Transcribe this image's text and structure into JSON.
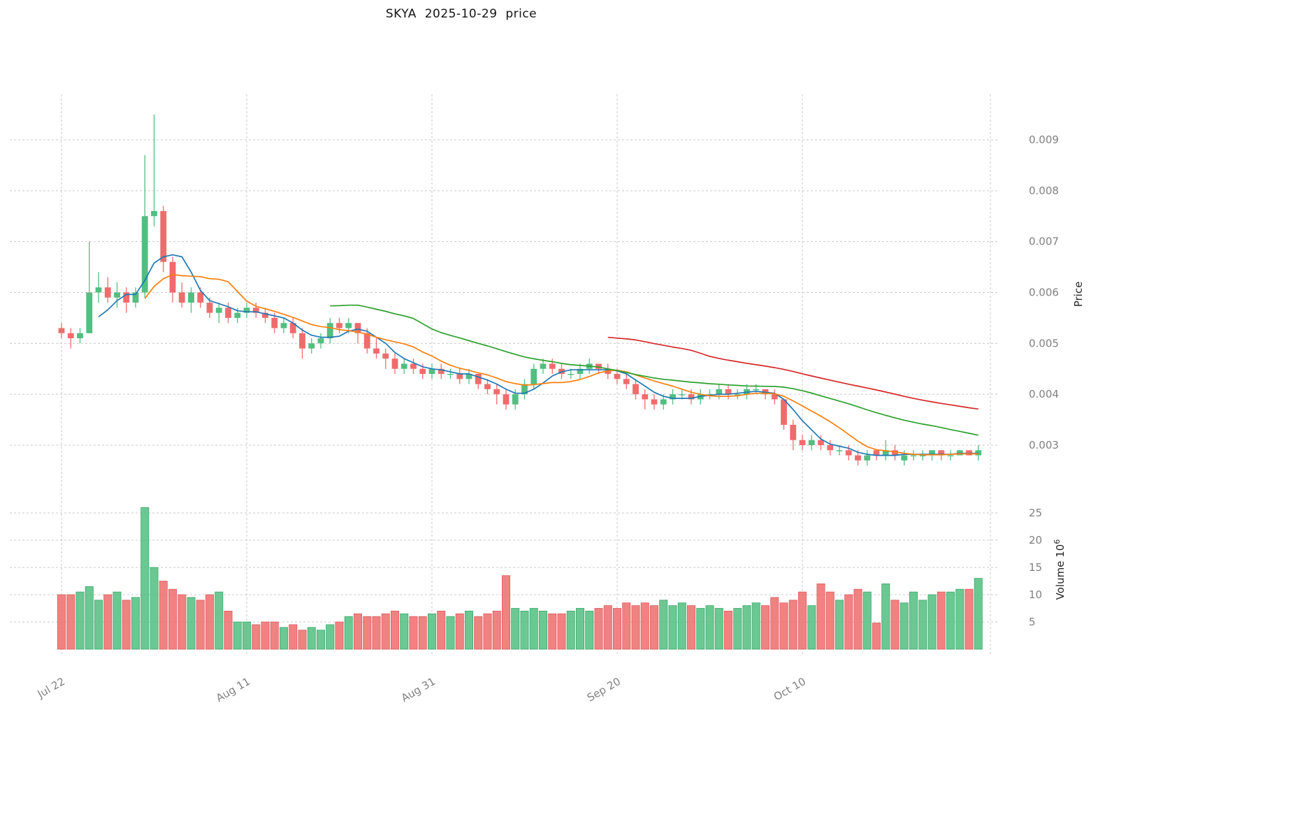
{
  "title": "SKYA  2025-10-29  price",
  "axes": {
    "price_axis_label": "Price",
    "volume_axis_label": "Volume",
    "volume_axis_base": "10",
    "volume_axis_exponent": "6",
    "price_ticks": [
      {
        "label": "0.003",
        "value": 0.003
      },
      {
        "label": "0.004",
        "value": 0.004
      },
      {
        "label": "0.005",
        "value": 0.005
      },
      {
        "label": "0.006",
        "value": 0.006
      },
      {
        "label": "0.007",
        "value": 0.007
      },
      {
        "label": "0.008",
        "value": 0.008
      },
      {
        "label": "0.009",
        "value": 0.009
      }
    ],
    "volume_ticks": [
      {
        "label": "5",
        "value": 5
      },
      {
        "label": "10",
        "value": 10
      },
      {
        "label": "15",
        "value": 15
      },
      {
        "label": "20",
        "value": 20
      },
      {
        "label": "25",
        "value": 25
      }
    ],
    "x_ticks": [
      {
        "label": "Jul 22",
        "index": 0
      },
      {
        "label": "Aug 11",
        "index": 20
      },
      {
        "label": "Aug 31",
        "index": 40
      },
      {
        "label": "Sep 20",
        "index": 60
      },
      {
        "label": "Oct 10",
        "index": 80
      }
    ]
  },
  "chart_data": {
    "type": "candlestick+volume",
    "title": "SKYA  2025-10-29  price",
    "volume_unit": "10^6",
    "grid": "dashed",
    "legend_position": "none",
    "colors": {
      "up": "#52be80",
      "down": "#ef6c6c",
      "up_edge": "#3aa869",
      "down_edge": "#dd5a5a",
      "grid": "#c9c9c9",
      "tick_text": "#808080",
      "title_text": "#141414"
    },
    "moving_averages": [
      {
        "window": 5,
        "color": "#1f77b4"
      },
      {
        "window": 10,
        "color": "#ff7f0e"
      },
      {
        "window": 30,
        "color": "#2ca02c"
      },
      {
        "window": 60,
        "color": "#d62728"
      }
    ],
    "price_axis_range": [
      0.0025,
      0.0097
    ],
    "volume_axis_range": [
      0,
      27
    ],
    "candle_columns": [
      "open",
      "high",
      "low",
      "close",
      "volume_millions"
    ],
    "candles": [
      [
        0.0053,
        0.0054,
        0.0051,
        0.0052,
        10
      ],
      [
        0.0052,
        0.0053,
        0.0049,
        0.0051,
        10
      ],
      [
        0.0051,
        0.0053,
        0.005,
        0.0052,
        10.5
      ],
      [
        0.0052,
        0.007,
        0.0052,
        0.006,
        11.5
      ],
      [
        0.006,
        0.0064,
        0.0058,
        0.0061,
        9
      ],
      [
        0.0061,
        0.0063,
        0.0058,
        0.0059,
        10
      ],
      [
        0.0059,
        0.0062,
        0.0057,
        0.006,
        10.5
      ],
      [
        0.006,
        0.0061,
        0.0056,
        0.0058,
        9
      ],
      [
        0.0058,
        0.0061,
        0.0057,
        0.006,
        9.5
      ],
      [
        0.006,
        0.0087,
        0.0059,
        0.0075,
        26
      ],
      [
        0.0075,
        0.0095,
        0.0073,
        0.0076,
        15
      ],
      [
        0.0076,
        0.0077,
        0.0064,
        0.0066,
        12.5
      ],
      [
        0.0066,
        0.0067,
        0.0058,
        0.006,
        11
      ],
      [
        0.006,
        0.0062,
        0.0057,
        0.0058,
        10
      ],
      [
        0.0058,
        0.0061,
        0.0056,
        0.006,
        9.5
      ],
      [
        0.006,
        0.0061,
        0.0057,
        0.0058,
        9
      ],
      [
        0.0058,
        0.0059,
        0.0055,
        0.0056,
        10
      ],
      [
        0.0056,
        0.0058,
        0.0054,
        0.0057,
        10.5
      ],
      [
        0.0057,
        0.0058,
        0.0054,
        0.0055,
        7
      ],
      [
        0.0055,
        0.0057,
        0.0054,
        0.0056,
        5
      ],
      [
        0.0056,
        0.0058,
        0.0055,
        0.0057,
        5
      ],
      [
        0.0057,
        0.0058,
        0.0055,
        0.0056,
        4.5
      ],
      [
        0.0056,
        0.0057,
        0.0054,
        0.0055,
        5
      ],
      [
        0.0055,
        0.0056,
        0.0052,
        0.0053,
        5
      ],
      [
        0.0053,
        0.0055,
        0.0052,
        0.0054,
        4
      ],
      [
        0.0054,
        0.0055,
        0.0051,
        0.0052,
        4.5
      ],
      [
        0.0052,
        0.0053,
        0.0047,
        0.0049,
        3.5
      ],
      [
        0.0049,
        0.0051,
        0.0048,
        0.005,
        4
      ],
      [
        0.005,
        0.0052,
        0.0049,
        0.0051,
        3.5
      ],
      [
        0.0051,
        0.0055,
        0.005,
        0.0054,
        4.5
      ],
      [
        0.0054,
        0.0055,
        0.0052,
        0.0053,
        5
      ],
      [
        0.0053,
        0.0055,
        0.0052,
        0.0054,
        6
      ],
      [
        0.0054,
        0.0054,
        0.005,
        0.0052,
        6.5
      ],
      [
        0.0052,
        0.0053,
        0.0048,
        0.0049,
        6
      ],
      [
        0.0049,
        0.0051,
        0.0047,
        0.0048,
        6
      ],
      [
        0.0048,
        0.0049,
        0.0045,
        0.0047,
        6.5
      ],
      [
        0.0047,
        0.0048,
        0.0044,
        0.0045,
        7
      ],
      [
        0.0045,
        0.0047,
        0.0044,
        0.0046,
        6.5
      ],
      [
        0.0046,
        0.0047,
        0.0044,
        0.0045,
        6
      ],
      [
        0.0045,
        0.0046,
        0.0043,
        0.0044,
        6
      ],
      [
        0.0044,
        0.0046,
        0.0043,
        0.0045,
        6.5
      ],
      [
        0.0045,
        0.0046,
        0.0043,
        0.0044,
        7
      ],
      [
        0.0044,
        0.0045,
        0.0043,
        0.0044,
        6
      ],
      [
        0.0044,
        0.0045,
        0.0042,
        0.0043,
        6.5
      ],
      [
        0.0043,
        0.0045,
        0.0042,
        0.0044,
        7
      ],
      [
        0.0044,
        0.0044,
        0.0041,
        0.0042,
        6
      ],
      [
        0.0042,
        0.0043,
        0.004,
        0.0041,
        6.5
      ],
      [
        0.0041,
        0.0042,
        0.0038,
        0.004,
        7
      ],
      [
        0.004,
        0.0041,
        0.0037,
        0.0038,
        13.5
      ],
      [
        0.0038,
        0.0041,
        0.0037,
        0.004,
        7.5
      ],
      [
        0.004,
        0.0043,
        0.0039,
        0.0042,
        7
      ],
      [
        0.0042,
        0.0046,
        0.0041,
        0.0045,
        7.5
      ],
      [
        0.0045,
        0.0047,
        0.0044,
        0.0046,
        7
      ],
      [
        0.0046,
        0.0047,
        0.0044,
        0.0045,
        6.5
      ],
      [
        0.0045,
        0.0046,
        0.0043,
        0.0044,
        6.5
      ],
      [
        0.0044,
        0.0045,
        0.0043,
        0.0044,
        7
      ],
      [
        0.0044,
        0.0046,
        0.0043,
        0.0045,
        7.5
      ],
      [
        0.0045,
        0.0047,
        0.0044,
        0.0046,
        7
      ],
      [
        0.0046,
        0.0046,
        0.0044,
        0.0045,
        7.5
      ],
      [
        0.0045,
        0.0046,
        0.0043,
        0.0044,
        8
      ],
      [
        0.0044,
        0.0045,
        0.0042,
        0.0043,
        7.5
      ],
      [
        0.0043,
        0.0044,
        0.0041,
        0.0042,
        8.5
      ],
      [
        0.0042,
        0.0043,
        0.0039,
        0.004,
        8
      ],
      [
        0.004,
        0.0041,
        0.0037,
        0.0039,
        8.5
      ],
      [
        0.0039,
        0.004,
        0.0037,
        0.0038,
        8
      ],
      [
        0.0038,
        0.004,
        0.0037,
        0.0039,
        9
      ],
      [
        0.0039,
        0.0041,
        0.0038,
        0.004,
        8
      ],
      [
        0.004,
        0.0041,
        0.0039,
        0.004,
        8.5
      ],
      [
        0.004,
        0.0041,
        0.0038,
        0.0039,
        8
      ],
      [
        0.0039,
        0.0041,
        0.0038,
        0.004,
        7.5
      ],
      [
        0.004,
        0.0041,
        0.0039,
        0.004,
        8
      ],
      [
        0.004,
        0.0042,
        0.0039,
        0.0041,
        7.5
      ],
      [
        0.0041,
        0.0042,
        0.0039,
        0.004,
        7
      ],
      [
        0.004,
        0.0041,
        0.0039,
        0.004,
        7.5
      ],
      [
        0.004,
        0.0042,
        0.0039,
        0.0041,
        8
      ],
      [
        0.0041,
        0.0042,
        0.004,
        0.0041,
        8.5
      ],
      [
        0.0041,
        0.0041,
        0.0039,
        0.004,
        8
      ],
      [
        0.004,
        0.0041,
        0.0038,
        0.0039,
        9.5
      ],
      [
        0.0039,
        0.0039,
        0.0033,
        0.0034,
        8.5
      ],
      [
        0.0034,
        0.0035,
        0.0029,
        0.0031,
        9
      ],
      [
        0.0031,
        0.0032,
        0.0029,
        0.003,
        10.5
      ],
      [
        0.003,
        0.0032,
        0.0029,
        0.0031,
        8
      ],
      [
        0.0031,
        0.0032,
        0.0029,
        0.003,
        12
      ],
      [
        0.003,
        0.0031,
        0.0028,
        0.0029,
        10.5
      ],
      [
        0.0029,
        0.003,
        0.0028,
        0.0029,
        9
      ],
      [
        0.0029,
        0.003,
        0.0027,
        0.0028,
        10
      ],
      [
        0.0028,
        0.0029,
        0.0026,
        0.0027,
        11
      ],
      [
        0.0027,
        0.0029,
        0.0026,
        0.0028,
        10.5
      ],
      [
        0.0029,
        0.0029,
        0.0027,
        0.0028,
        4.8
      ],
      [
        0.0028,
        0.0031,
        0.0027,
        0.0029,
        12
      ],
      [
        0.0029,
        0.003,
        0.0027,
        0.0028,
        9
      ],
      [
        0.0027,
        0.0029,
        0.0026,
        0.0028,
        8.5
      ],
      [
        0.0028,
        0.0029,
        0.0027,
        0.0028,
        10.5
      ],
      [
        0.0028,
        0.0029,
        0.0027,
        0.0028,
        9
      ],
      [
        0.0028,
        0.0029,
        0.0027,
        0.0029,
        10
      ],
      [
        0.0029,
        0.0029,
        0.0027,
        0.0028,
        10.5
      ],
      [
        0.0028,
        0.0029,
        0.0027,
        0.0028,
        10.5
      ],
      [
        0.0028,
        0.0029,
        0.0028,
        0.0029,
        11
      ],
      [
        0.0029,
        0.0029,
        0.0028,
        0.0028,
        11
      ],
      [
        0.0028,
        0.003,
        0.0027,
        0.0029,
        13
      ]
    ]
  }
}
